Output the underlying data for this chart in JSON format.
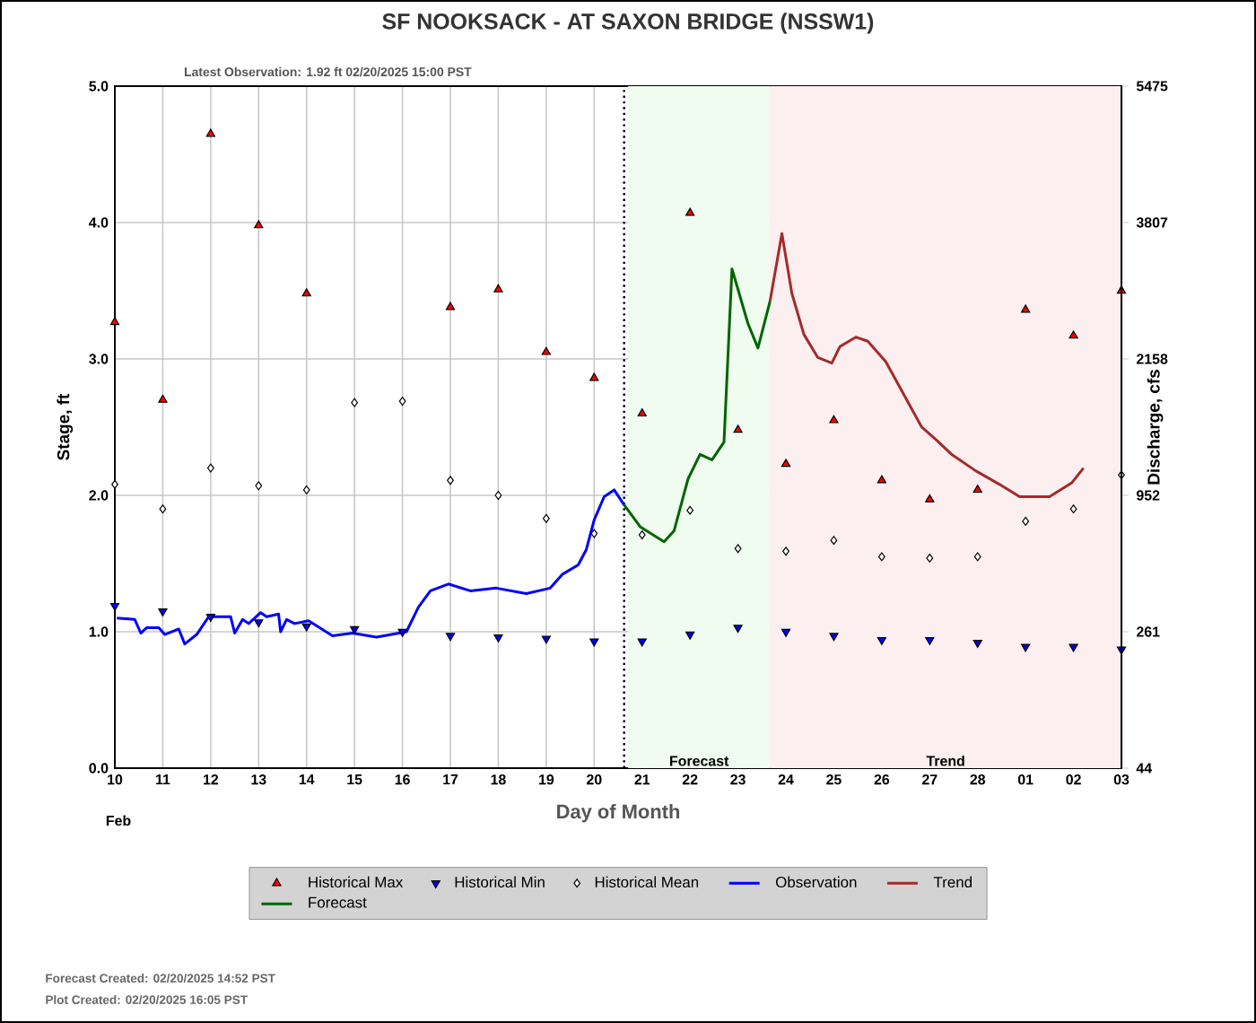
{
  "chart_data": {
    "type": "line",
    "title": "SF NOOKSACK - AT SAXON BRIDGE  (NSSW1)",
    "subtitle": "Latest Observation: 1.92 ft 02/20/2025 15:00 PST",
    "xlabel": "Day of Month",
    "ylabel": "Stage, ft",
    "y2label": "Discharge, cfs",
    "xlim": [
      "2025-02-10",
      "2025-03-03"
    ],
    "xticks": [
      {
        "value": "2025-02-10",
        "label": "10"
      },
      {
        "value": "2025-02-11",
        "label": "11"
      },
      {
        "value": "2025-02-12",
        "label": "12"
      },
      {
        "value": "2025-02-13",
        "label": "13"
      },
      {
        "value": "2025-02-14",
        "label": "14"
      },
      {
        "value": "2025-02-15",
        "label": "15"
      },
      {
        "value": "2025-02-16",
        "label": "16"
      },
      {
        "value": "2025-02-17",
        "label": "17"
      },
      {
        "value": "2025-02-18",
        "label": "18"
      },
      {
        "value": "2025-02-19",
        "label": "19"
      },
      {
        "value": "2025-02-20",
        "label": "20"
      },
      {
        "value": "2025-02-21",
        "label": "21"
      },
      {
        "value": "2025-02-22",
        "label": "22"
      },
      {
        "value": "2025-02-23",
        "label": "23"
      },
      {
        "value": "2025-02-24",
        "label": "24"
      },
      {
        "value": "2025-02-25",
        "label": "25"
      },
      {
        "value": "2025-02-26",
        "label": "26"
      },
      {
        "value": "2025-02-27",
        "label": "27"
      },
      {
        "value": "2025-02-28",
        "label": "28"
      },
      {
        "value": "2025-03-01",
        "label": "01"
      },
      {
        "value": "2025-03-02",
        "label": "02"
      },
      {
        "value": "2025-03-03",
        "label": "03"
      }
    ],
    "ylim": [
      0,
      5
    ],
    "yticks": [
      {
        "value": 0,
        "label": "0.0"
      },
      {
        "value": 1,
        "label": "1.0"
      },
      {
        "value": 2,
        "label": "2.0"
      },
      {
        "value": 3,
        "label": "3.0"
      },
      {
        "value": 4,
        "label": "4.0"
      },
      {
        "value": 5,
        "label": "5.0"
      }
    ],
    "grid": true,
    "legend": "bottom",
    "ref_lines": [
      {
        "axis": "x",
        "value": "2025-02-20T15:00",
        "color": "#000000",
        "line_style": "dotted"
      }
    ],
    "bands": [
      {
        "axis": "x",
        "from": "2025-02-20T17:00",
        "to": "2025-02-23T16:00",
        "label": "Forecast",
        "color": "#effcef"
      },
      {
        "axis": "x",
        "from": "2025-02-23T16:00",
        "to": "2025-03-03",
        "label": "Trend",
        "color": "#fcefef"
      }
    ],
    "series": [
      {
        "name": "Historical Max",
        "type": "scatter",
        "marker": "triangle",
        "color": "#ff0000",
        "x": [
          "2025-02-10",
          "2025-02-11",
          "2025-02-12",
          "2025-02-13",
          "2025-02-14",
          "2025-02-17",
          "2025-02-18",
          "2025-02-19",
          "2025-02-20",
          "2025-02-21",
          "2025-02-22",
          "2025-02-23",
          "2025-02-24",
          "2025-02-25",
          "2025-02-26",
          "2025-02-27",
          "2025-02-28",
          "2025-03-01",
          "2025-03-02",
          "2025-03-03"
        ],
        "values": [
          3.27,
          2.7,
          4.65,
          3.98,
          3.48,
          3.38,
          3.51,
          3.05,
          2.86,
          2.6,
          4.07,
          2.48,
          2.23,
          2.55,
          2.11,
          1.97,
          2.04,
          3.36,
          3.17,
          3.5
        ]
      },
      {
        "name": "Historical Min",
        "type": "scatter",
        "marker": "triangle-down",
        "color": "#0000ff",
        "x": [
          "2025-02-10",
          "2025-02-11",
          "2025-02-12",
          "2025-02-13",
          "2025-02-14",
          "2025-02-15",
          "2025-02-16",
          "2025-02-17",
          "2025-02-18",
          "2025-02-19",
          "2025-02-20",
          "2025-02-21",
          "2025-02-22",
          "2025-02-23",
          "2025-02-24",
          "2025-02-25",
          "2025-02-26",
          "2025-02-27",
          "2025-02-28",
          "2025-03-01",
          "2025-03-02",
          "2025-03-03"
        ],
        "values": [
          1.19,
          1.15,
          1.11,
          1.07,
          1.04,
          1.02,
          1.0,
          0.97,
          0.96,
          0.95,
          0.93,
          0.93,
          0.98,
          1.03,
          1.0,
          0.97,
          0.94,
          0.94,
          0.92,
          0.89,
          0.89,
          0.87
        ]
      },
      {
        "name": "Historical Mean",
        "type": "scatter",
        "marker": "diamond",
        "color": "#ffffff",
        "x": [
          "2025-02-10",
          "2025-02-11",
          "2025-02-12",
          "2025-02-13",
          "2025-02-14",
          "2025-02-15",
          "2025-02-16",
          "2025-02-17",
          "2025-02-18",
          "2025-02-19",
          "2025-02-20",
          "2025-02-21",
          "2025-02-22",
          "2025-02-23",
          "2025-02-24",
          "2025-02-25",
          "2025-02-26",
          "2025-02-27",
          "2025-02-28",
          "2025-03-01",
          "2025-03-02",
          "2025-03-03"
        ],
        "values": [
          2.08,
          1.9,
          2.2,
          2.07,
          2.04,
          2.68,
          2.69,
          2.11,
          2.0,
          1.83,
          1.72,
          1.71,
          1.89,
          1.61,
          1.59,
          1.67,
          1.55,
          1.54,
          1.55,
          1.81,
          1.9,
          2.15
        ]
      },
      {
        "name": "Observation",
        "color": "#0000ff",
        "x": [
          "2025-02-10T01:00",
          "2025-02-10T10:00",
          "2025-02-10T13:00",
          "2025-02-10T16:00",
          "2025-02-10T22:00",
          "2025-02-11T01:00",
          "2025-02-11T08:00",
          "2025-02-11T11:00",
          "2025-02-11T17:00",
          "2025-02-11T23:00",
          "2025-02-12T10:00",
          "2025-02-12T12:00",
          "2025-02-12T16:00",
          "2025-02-12T19:00",
          "2025-02-13T01:00",
          "2025-02-13T04:00",
          "2025-02-13T10:00",
          "2025-02-13T11:00",
          "2025-02-13T14:00",
          "2025-02-13T18:00",
          "2025-02-14T01:00",
          "2025-02-14T13:00",
          "2025-02-14T23:00",
          "2025-02-15T11:00",
          "2025-02-16T02:00",
          "2025-02-16T08:00",
          "2025-02-16T14:00",
          "2025-02-16T23:00",
          "2025-02-17T10:00",
          "2025-02-17T23:00",
          "2025-02-18T14:00",
          "2025-02-19T02:00",
          "2025-02-19T08:00",
          "2025-02-19T16:00",
          "2025-02-19T20:00",
          "2025-02-20T00:00",
          "2025-02-20T05:00",
          "2025-02-20T10:00",
          "2025-02-20T15:00"
        ],
        "values": [
          1.1,
          1.09,
          0.99,
          1.03,
          1.03,
          0.98,
          1.02,
          0.91,
          0.98,
          1.11,
          1.11,
          0.99,
          1.09,
          1.06,
          1.14,
          1.11,
          1.13,
          1.0,
          1.09,
          1.06,
          1.08,
          0.97,
          0.99,
          0.96,
          1.0,
          1.18,
          1.3,
          1.35,
          1.3,
          1.32,
          1.28,
          1.32,
          1.42,
          1.49,
          1.6,
          1.82,
          1.99,
          2.04,
          1.93
        ]
      },
      {
        "name": "Trend",
        "color": "#a52a2a",
        "x": [
          "2025-02-23T16:00",
          "2025-02-23T22:00",
          "2025-02-24T03:00",
          "2025-02-24T09:00",
          "2025-02-24T16:00",
          "2025-02-24T23:00",
          "2025-02-25T03:00",
          "2025-02-25T11:00",
          "2025-02-25T17:00",
          "2025-02-26T02:00",
          "2025-02-26T11:00",
          "2025-02-26T20:00",
          "2025-02-27T03:00",
          "2025-02-27T11:00",
          "2025-02-27T23:00",
          "2025-02-28T11:00",
          "2025-02-28T21:00",
          "2025-03-01T12:00",
          "2025-03-01T23:00",
          "2025-03-02T05:00"
        ],
        "values": [
          3.42,
          3.92,
          3.48,
          3.18,
          3.01,
          2.97,
          3.09,
          3.16,
          3.13,
          2.98,
          2.74,
          2.5,
          2.41,
          2.3,
          2.18,
          2.08,
          1.99,
          1.99,
          2.09,
          2.2
        ]
      },
      {
        "name": "Forecast",
        "color": "#006400",
        "x": [
          "2025-02-20T15:00",
          "2025-02-20T23:00",
          "2025-02-21T11:00",
          "2025-02-21T16:00",
          "2025-02-21T23:00",
          "2025-02-22T05:00",
          "2025-02-22T11:00",
          "2025-02-22T17:00",
          "2025-02-22T21:00",
          "2025-02-23T05:00",
          "2025-02-23T10:00",
          "2025-02-23T16:00"
        ],
        "values": [
          1.93,
          1.77,
          1.66,
          1.74,
          2.12,
          2.3,
          2.26,
          2.39,
          3.66,
          3.26,
          3.08,
          3.42
        ]
      }
    ],
    "annotations": [
      "Feb",
      "Forecast Created: 02/20/2025 14:52 PST",
      "Plot Created: 02/20/2025 16:05 PST",
      "44",
      "261",
      "952",
      "2158",
      "3807",
      "5475"
    ]
  }
}
